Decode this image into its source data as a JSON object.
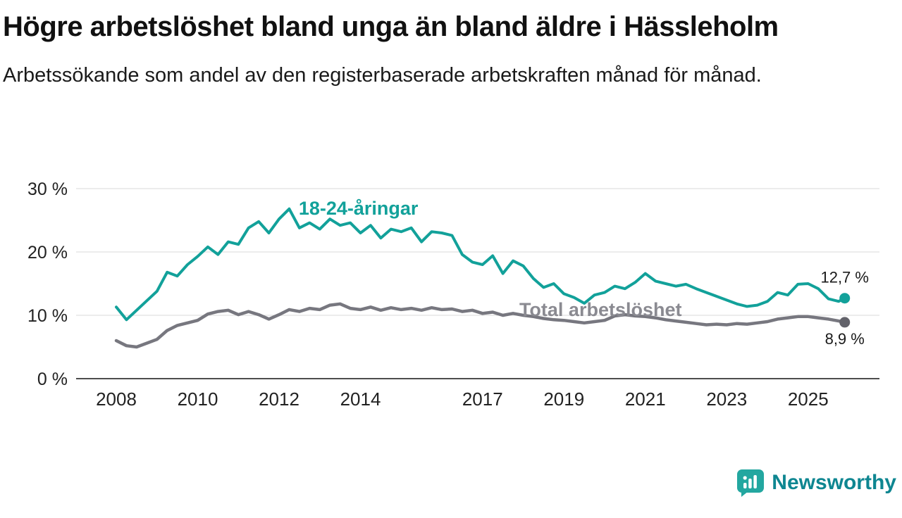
{
  "header": {
    "title": "Högre arbetslöshet bland unga än bland äldre i Hässleholm",
    "subtitle": "Arbetssökande som andel av den registerbaserade arbetskraften månad för månad."
  },
  "colors": {
    "accent_teal": "#12a19a",
    "series_gray": "#77777f",
    "label_gray": "#8a8a91",
    "dot_gray": "#62626a",
    "grid": "#d9d9d9",
    "axis": "#4d4d4d",
    "tick_text": "#222222",
    "value_text": "#1a1a1a",
    "logo_teal": "#23a7a0",
    "logo_text": "#0e8691"
  },
  "chart_data": {
    "type": "line",
    "title": "Högre arbetslöshet bland unga än bland äldre i Hässleholm",
    "subtitle": "Arbetssökande som andel av den registerbaserade arbetskraften månad för månad.",
    "xlabel": "",
    "ylabel": "",
    "unit": "%",
    "grid": true,
    "legend_position": "inline-labels",
    "ylim": [
      0,
      30
    ],
    "xlim": [
      2007.6,
      2026.3
    ],
    "y_ticks": [
      0,
      10,
      20,
      30
    ],
    "y_tick_labels": [
      "0 %",
      "10 %",
      "20 %",
      "30 %"
    ],
    "x_ticks": [
      2008,
      2010,
      2012,
      2014,
      2017,
      2019,
      2021,
      2023,
      2025
    ],
    "x_tick_labels": [
      "2008",
      "2010",
      "2012",
      "2014",
      "2017",
      "2019",
      "2021",
      "2023",
      "2025"
    ],
    "x": [
      2008,
      2008.25,
      2008.5,
      2008.75,
      2009,
      2009.25,
      2009.5,
      2009.75,
      2010,
      2010.25,
      2010.5,
      2010.75,
      2011,
      2011.25,
      2011.5,
      2011.75,
      2012,
      2012.25,
      2012.5,
      2012.75,
      2013,
      2013.25,
      2013.5,
      2013.75,
      2014,
      2014.25,
      2014.5,
      2014.75,
      2015,
      2015.25,
      2015.5,
      2015.75,
      2016,
      2016.25,
      2016.5,
      2016.75,
      2017,
      2017.25,
      2017.5,
      2017.75,
      2018,
      2018.25,
      2018.5,
      2018.75,
      2019,
      2019.25,
      2019.5,
      2019.75,
      2020,
      2020.25,
      2020.5,
      2020.75,
      2021,
      2021.25,
      2021.5,
      2021.75,
      2022,
      2022.25,
      2022.5,
      2022.75,
      2023,
      2023.25,
      2023.5,
      2023.75,
      2024,
      2024.25,
      2024.5,
      2024.75,
      2025,
      2025.25,
      2025.5,
      2025.75,
      2025.9
    ],
    "series": [
      {
        "key": "youth",
        "name": "18-24-åringar",
        "color": "#12a19a",
        "label_color": "#12a19a",
        "dot_color": "#12a19a",
        "width": 4,
        "end_value": 12.7,
        "end_label": "12,7 %",
        "end_label_dy": -22,
        "label_at": {
          "x": 2013.95,
          "y": 25.9
        },
        "values": [
          11.3,
          9.3,
          10.8,
          12.3,
          13.8,
          16.8,
          16.2,
          18.0,
          19.3,
          20.8,
          19.6,
          21.6,
          21.2,
          23.8,
          24.8,
          23.0,
          25.2,
          26.8,
          23.8,
          24.6,
          23.6,
          25.2,
          24.2,
          24.6,
          23.0,
          24.2,
          22.2,
          23.6,
          23.2,
          23.8,
          21.6,
          23.2,
          23.0,
          22.6,
          19.6,
          18.4,
          18.0,
          19.4,
          16.6,
          18.6,
          17.8,
          15.8,
          14.4,
          15.0,
          13.4,
          12.8,
          11.9,
          13.2,
          13.6,
          14.6,
          14.2,
          15.2,
          16.6,
          15.4,
          15.0,
          14.6,
          14.9,
          14.2,
          13.6,
          13.0,
          12.4,
          11.8,
          11.4,
          11.6,
          12.2,
          13.6,
          13.2,
          14.9,
          15.0,
          14.2,
          12.6,
          12.2,
          12.7
        ]
      },
      {
        "key": "total",
        "name": "Total arbetslöshet",
        "color": "#77777f",
        "label_color": "#8a8a91",
        "dot_color": "#62626a",
        "width": 4.5,
        "end_value": 8.9,
        "end_label": "8,9 %",
        "end_label_dy": 31,
        "label_at": {
          "x": 2019.9,
          "y": 9.9
        },
        "values": [
          6.0,
          5.2,
          5.0,
          5.6,
          6.2,
          7.6,
          8.4,
          8.8,
          9.2,
          10.2,
          10.6,
          10.8,
          10.1,
          10.6,
          10.1,
          9.4,
          10.1,
          10.9,
          10.6,
          11.1,
          10.9,
          11.6,
          11.8,
          11.1,
          10.9,
          11.3,
          10.8,
          11.2,
          10.9,
          11.1,
          10.8,
          11.2,
          10.9,
          11.0,
          10.6,
          10.8,
          10.3,
          10.5,
          10.0,
          10.3,
          10.0,
          9.8,
          9.5,
          9.3,
          9.2,
          9.0,
          8.8,
          9.0,
          9.2,
          9.9,
          10.1,
          9.9,
          9.8,
          9.6,
          9.3,
          9.1,
          8.9,
          8.7,
          8.5,
          8.6,
          8.5,
          8.7,
          8.6,
          8.8,
          9.0,
          9.4,
          9.6,
          9.8,
          9.8,
          9.6,
          9.4,
          9.1,
          8.9
        ]
      }
    ]
  },
  "logo": {
    "name": "Newsworthy"
  }
}
